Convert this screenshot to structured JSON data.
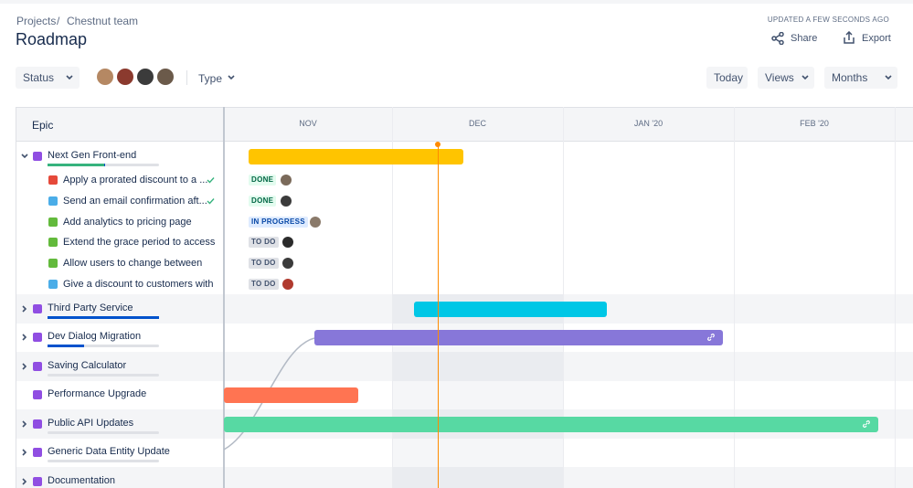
{
  "breadcrumb": {
    "items": [
      "Projects",
      "Chestnut team"
    ],
    "separator": "/"
  },
  "header": {
    "title": "Roadmap",
    "updated": "UPDATED A FEW SECONDS AGO",
    "actions": [
      "Share",
      "Export"
    ]
  },
  "toolbar": {
    "filters": [
      "Status",
      "Type"
    ],
    "buttons": [
      "Today",
      "Views",
      "Months"
    ]
  },
  "timeline": {
    "column_header": "Epic",
    "months": [
      "NOV",
      "DEC",
      "JAN '20",
      "FEB '20"
    ]
  },
  "epics": [
    {
      "name": "Next Gen Front-end",
      "color": "#ffc400",
      "issues": [
        {
          "title": "Apply a prorated discount to a ...",
          "status": "DONE"
        },
        {
          "title": "Send an email confirmation aft...",
          "status": "DONE"
        },
        {
          "title": "Add analytics to pricing page",
          "status": "IN PROGRESS"
        },
        {
          "title": "Extend the grace period to access",
          "status": "TO DO"
        },
        {
          "title": "Allow users to change between",
          "status": "TO DO"
        },
        {
          "title": "Give a discount to customers with",
          "status": "TO DO"
        }
      ]
    },
    {
      "name": "Third Party Service",
      "color": "#00c7e6"
    },
    {
      "name": "Dev Dialog Migration",
      "color": "#8777d9"
    },
    {
      "name": "Saving Calculator"
    },
    {
      "name": "Performance Upgrade",
      "color": "#ff7452"
    },
    {
      "name": "Public API Updates",
      "color": "#57d9a3"
    },
    {
      "name": "Generic Data Entity Update"
    },
    {
      "name": "Documentation"
    }
  ]
}
